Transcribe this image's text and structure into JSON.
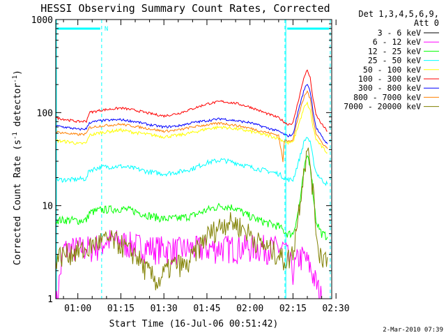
{
  "chart_data": {
    "type": "line",
    "title": "HESSI Observing Summary Count Rates, Corrected",
    "xlabel": "Start Time (16-Jul-06 00:51:42)",
    "ylabel_main": "Corrected Count Rate (s",
    "ylabel_sup1": "-1",
    "ylabel_mid": " detector",
    "ylabel_sup2": "-1",
    "ylabel_end": ")",
    "y_scale": "log",
    "ylim": [
      1,
      1000
    ],
    "xlim_minutes": [
      52.3,
      148.5
    ],
    "y_ticks": [
      {
        "value": 1,
        "label": "1"
      },
      {
        "value": 10,
        "label": "10"
      },
      {
        "value": 100,
        "label": "100"
      },
      {
        "value": 1000,
        "label": "1000"
      }
    ],
    "x_ticks": [
      {
        "minute": 60,
        "label": "01:00"
      },
      {
        "minute": 75,
        "label": "01:15"
      },
      {
        "minute": 90,
        "label": "01:30"
      },
      {
        "minute": 105,
        "label": "01:45"
      },
      {
        "minute": 120,
        "label": "02:00"
      },
      {
        "minute": 135,
        "label": "02:15"
      },
      {
        "minute": 150,
        "label": "02:30"
      }
    ],
    "legend_header": [
      "Det 1,3,4,5,6,9,",
      "Att 0"
    ],
    "night_flag_label": "N",
    "night_intervals": [
      [
        52.3,
        68.3
      ],
      [
        132.5,
        148.0
      ]
    ],
    "saa_lines_minutes": [
      68.3,
      132.2,
      148.0
    ],
    "series": [
      {
        "name": "3 - 6 keV",
        "color": "#000000",
        "values": []
      },
      {
        "name": "6 - 12 keV",
        "color": "#ff00ff",
        "values": [
          [
            52.3,
            0.8
          ],
          [
            55,
            3.4
          ],
          [
            60,
            3.5
          ],
          [
            65,
            3.6
          ],
          [
            68,
            3.8
          ],
          [
            70,
            4.3
          ],
          [
            75,
            4.1
          ],
          [
            80,
            3.8
          ],
          [
            85,
            3.6
          ],
          [
            90,
            3.5
          ],
          [
            95,
            3.4
          ],
          [
            100,
            3.5
          ],
          [
            105,
            3.5
          ],
          [
            110,
            3.6
          ],
          [
            115,
            3.6
          ],
          [
            120,
            3.6
          ],
          [
            125,
            3.6
          ],
          [
            130,
            3.5
          ],
          [
            132,
            3.5
          ],
          [
            135,
            2.0
          ],
          [
            137,
            2.8
          ],
          [
            139,
            2.8
          ],
          [
            141,
            2.2
          ],
          [
            143,
            1.5
          ],
          [
            145,
            1.0
          ]
        ]
      },
      {
        "name": "12 - 25 keV",
        "color": "#00ff00",
        "values": [
          [
            52.3,
            7
          ],
          [
            58,
            7
          ],
          [
            60,
            6.9
          ],
          [
            63,
            7
          ],
          [
            64,
            8.4
          ],
          [
            68,
            9
          ],
          [
            75,
            9.3
          ],
          [
            80,
            8.7
          ],
          [
            85,
            7.8
          ],
          [
            90,
            7.2
          ],
          [
            95,
            7.3
          ],
          [
            100,
            7.8
          ],
          [
            105,
            9
          ],
          [
            110,
            10
          ],
          [
            115,
            9.5
          ],
          [
            118,
            8.2
          ],
          [
            122,
            7.2
          ],
          [
            126,
            6.5
          ],
          [
            130,
            6
          ],
          [
            133,
            5
          ],
          [
            135,
            5
          ],
          [
            137,
            9
          ],
          [
            139,
            25
          ],
          [
            140,
            35
          ],
          [
            141,
            28
          ],
          [
            142,
            14
          ],
          [
            143,
            7
          ],
          [
            145,
            5
          ],
          [
            147,
            4.6
          ]
        ]
      },
      {
        "name": "25 - 50 keV",
        "color": "#00ffff",
        "values": [
          [
            52.3,
            19
          ],
          [
            58,
            19
          ],
          [
            60,
            19.3
          ],
          [
            63,
            19.5
          ],
          [
            64,
            24
          ],
          [
            68,
            26
          ],
          [
            75,
            26.5
          ],
          [
            80,
            25
          ],
          [
            85,
            23
          ],
          [
            90,
            22
          ],
          [
            95,
            23
          ],
          [
            100,
            25
          ],
          [
            105,
            29
          ],
          [
            110,
            31
          ],
          [
            115,
            29
          ],
          [
            120,
            26
          ],
          [
            125,
            24
          ],
          [
            130,
            22
          ],
          [
            133,
            19
          ],
          [
            135,
            19
          ],
          [
            137,
            30
          ],
          [
            139,
            50
          ],
          [
            140,
            55
          ],
          [
            141,
            47
          ],
          [
            142,
            32
          ],
          [
            143,
            23
          ],
          [
            145,
            19
          ],
          [
            147,
            17
          ]
        ]
      },
      {
        "name": "50 - 100 keV",
        "color": "#ffff00",
        "values": [
          [
            52.3,
            50
          ],
          [
            58,
            48
          ],
          [
            60,
            46
          ],
          [
            63,
            47
          ],
          [
            64,
            57
          ],
          [
            68,
            61
          ],
          [
            75,
            65
          ],
          [
            80,
            61
          ],
          [
            85,
            58
          ],
          [
            90,
            55
          ],
          [
            95,
            57
          ],
          [
            100,
            61
          ],
          [
            105,
            67
          ],
          [
            110,
            70
          ],
          [
            115,
            67
          ],
          [
            120,
            63
          ],
          [
            125,
            58
          ],
          [
            130,
            53
          ],
          [
            133,
            47
          ],
          [
            135,
            48
          ],
          [
            137,
            75
          ],
          [
            139,
            115
          ],
          [
            140,
            125
          ],
          [
            141,
            105
          ],
          [
            142,
            70
          ],
          [
            143,
            52
          ],
          [
            145,
            43
          ],
          [
            147,
            37
          ]
        ]
      },
      {
        "name": "100 - 300 keV",
        "color": "#ff0000",
        "values": [
          [
            52.3,
            88
          ],
          [
            58,
            82
          ],
          [
            60,
            80
          ],
          [
            63,
            81
          ],
          [
            64,
            100
          ],
          [
            68,
            106
          ],
          [
            75,
            112
          ],
          [
            80,
            106
          ],
          [
            85,
            98
          ],
          [
            90,
            92
          ],
          [
            95,
            98
          ],
          [
            100,
            110
          ],
          [
            105,
            124
          ],
          [
            110,
            132
          ],
          [
            115,
            126
          ],
          [
            120,
            115
          ],
          [
            125,
            100
          ],
          [
            130,
            88
          ],
          [
            133,
            75
          ],
          [
            135,
            77
          ],
          [
            137,
            140
          ],
          [
            139,
            250
          ],
          [
            140,
            285
          ],
          [
            141,
            235
          ],
          [
            142,
            140
          ],
          [
            143,
            95
          ],
          [
            145,
            75
          ],
          [
            147,
            63
          ]
        ]
      },
      {
        "name": "300 - 800 keV",
        "color": "#0000ff",
        "values": [
          [
            52.3,
            72
          ],
          [
            58,
            68
          ],
          [
            60,
            66
          ],
          [
            63,
            67
          ],
          [
            64,
            78
          ],
          [
            68,
            82
          ],
          [
            75,
            84
          ],
          [
            80,
            80
          ],
          [
            85,
            74
          ],
          [
            90,
            70
          ],
          [
            95,
            72
          ],
          [
            100,
            78
          ],
          [
            105,
            82
          ],
          [
            110,
            86
          ],
          [
            115,
            82
          ],
          [
            120,
            78
          ],
          [
            125,
            70
          ],
          [
            130,
            63
          ],
          [
            133,
            56
          ],
          [
            135,
            58
          ],
          [
            137,
            110
          ],
          [
            139,
            180
          ],
          [
            140,
            205
          ],
          [
            141,
            170
          ],
          [
            142,
            105
          ],
          [
            143,
            70
          ],
          [
            145,
            55
          ],
          [
            147,
            46
          ]
        ]
      },
      {
        "name": "800 - 7000 keV",
        "color": "#ff8000",
        "values": [
          [
            52.3,
            62
          ],
          [
            58,
            59
          ],
          [
            60,
            58
          ],
          [
            63,
            59
          ],
          [
            64,
            69
          ],
          [
            68,
            72
          ],
          [
            75,
            75
          ],
          [
            80,
            71
          ],
          [
            85,
            67
          ],
          [
            90,
            63
          ],
          [
            95,
            65
          ],
          [
            100,
            70
          ],
          [
            105,
            74
          ],
          [
            110,
            77
          ],
          [
            115,
            73
          ],
          [
            120,
            68
          ],
          [
            125,
            62
          ],
          [
            130,
            57
          ],
          [
            131.5,
            30
          ],
          [
            132,
            50
          ],
          [
            133,
            50
          ],
          [
            135,
            51
          ],
          [
            137,
            95
          ],
          [
            139,
            150
          ],
          [
            140,
            170
          ],
          [
            141,
            140
          ],
          [
            142,
            88
          ],
          [
            143,
            60
          ],
          [
            145,
            48
          ],
          [
            147,
            41
          ]
        ]
      },
      {
        "name": "7000 - 20000 keV",
        "color": "#808000",
        "values": [
          [
            52.3,
            2.8
          ],
          [
            55,
            3
          ],
          [
            58,
            3.2
          ],
          [
            60,
            3.3
          ],
          [
            63,
            3.3
          ],
          [
            65,
            3.8
          ],
          [
            68,
            4.2
          ],
          [
            72,
            4.3
          ],
          [
            75,
            3.9
          ],
          [
            78,
            3.2
          ],
          [
            80,
            3.1
          ],
          [
            83,
            2.2
          ],
          [
            85,
            1.9
          ],
          [
            88,
            1.5
          ],
          [
            90,
            1.9
          ],
          [
            93,
            2.3
          ],
          [
            95,
            2.4
          ],
          [
            98,
            2.2
          ],
          [
            100,
            2.9
          ],
          [
            103,
            3.9
          ],
          [
            105,
            4.8
          ],
          [
            108,
            5.6
          ],
          [
            110,
            6.3
          ],
          [
            112,
            6.8
          ],
          [
            115,
            6.5
          ],
          [
            118,
            5.6
          ],
          [
            120,
            5.0
          ],
          [
            122,
            4.3
          ],
          [
            125,
            3.7
          ],
          [
            128,
            3.3
          ],
          [
            130,
            3.0
          ],
          [
            132,
            2.6
          ],
          [
            134,
            2.8
          ],
          [
            135,
            3.2
          ],
          [
            137,
            9
          ],
          [
            139,
            28
          ],
          [
            140,
            37
          ],
          [
            141,
            30
          ],
          [
            142,
            14
          ],
          [
            143,
            6
          ],
          [
            144,
            3.2
          ],
          [
            146,
            2.8
          ],
          [
            147,
            2.8
          ]
        ]
      }
    ]
  },
  "footer_date": "2-Mar-2010 07:39"
}
